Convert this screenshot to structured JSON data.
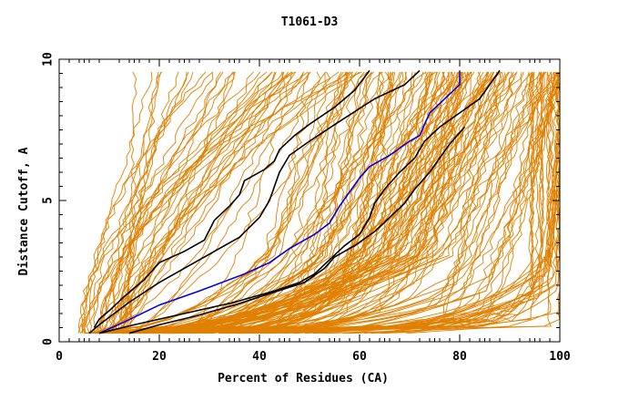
{
  "chart_data": {
    "type": "line",
    "title": "T1061-D3",
    "xlabel": "Percent of Residues (CA)",
    "ylabel": "Distance Cutoff, A",
    "xlim": [
      0,
      100
    ],
    "ylim": [
      0,
      10
    ],
    "x_ticks": [
      0,
      20,
      40,
      60,
      80,
      100
    ],
    "y_ticks": [
      0,
      5,
      10
    ],
    "x_tick_labels": [
      "0",
      "20",
      "40",
      "60",
      "80",
      "100"
    ],
    "y_tick_labels": [
      "0",
      "5",
      "10"
    ],
    "grid": false,
    "legend": "none",
    "colors": {
      "background_series": "#e08000",
      "highlight_black": "#000000",
      "highlight_blue": "#0000e0"
    },
    "highlighted_series": [
      {
        "color": "#000000",
        "points": [
          [
            7,
            0.5
          ],
          [
            8,
            0.8
          ],
          [
            10,
            1.1
          ],
          [
            13,
            1.6
          ],
          [
            17,
            2.2
          ],
          [
            20,
            2.8
          ],
          [
            25,
            3.2
          ],
          [
            29,
            3.6
          ],
          [
            31,
            4.3
          ],
          [
            34,
            4.8
          ],
          [
            36,
            5.2
          ],
          [
            37,
            5.7
          ],
          [
            41,
            6.1
          ],
          [
            43,
            6.4
          ],
          [
            44,
            6.8
          ],
          [
            47,
            7.3
          ],
          [
            50,
            7.7
          ],
          [
            55,
            8.3
          ],
          [
            59,
            8.9
          ],
          [
            62,
            9.6
          ]
        ]
      },
      {
        "color": "#000000",
        "points": [
          [
            6,
            0.3
          ],
          [
            8,
            0.6
          ],
          [
            11,
            1.0
          ],
          [
            14,
            1.4
          ],
          [
            20,
            2.1
          ],
          [
            26,
            2.7
          ],
          [
            31,
            3.2
          ],
          [
            36,
            3.7
          ],
          [
            40,
            4.4
          ],
          [
            42,
            5.0
          ],
          [
            43,
            5.5
          ],
          [
            44,
            6.0
          ],
          [
            46,
            6.6
          ],
          [
            50,
            7.1
          ],
          [
            56,
            7.8
          ],
          [
            63,
            8.6
          ],
          [
            69,
            9.1
          ],
          [
            72,
            9.6
          ]
        ]
      },
      {
        "color": "#0000e0",
        "points": [
          [
            8,
            0.3
          ],
          [
            13,
            0.7
          ],
          [
            20,
            1.3
          ],
          [
            28,
            1.8
          ],
          [
            37,
            2.4
          ],
          [
            42,
            2.8
          ],
          [
            46,
            3.3
          ],
          [
            51,
            3.8
          ],
          [
            54,
            4.2
          ],
          [
            56,
            4.8
          ],
          [
            58,
            5.3
          ],
          [
            60,
            5.8
          ],
          [
            62,
            6.2
          ],
          [
            66,
            6.6
          ],
          [
            70,
            7.1
          ],
          [
            72,
            7.3
          ],
          [
            74,
            8.1
          ],
          [
            77,
            8.6
          ],
          [
            80,
            9.1
          ],
          [
            80,
            9.6
          ]
        ]
      },
      {
        "color": "#000000",
        "points": [
          [
            8,
            0.3
          ],
          [
            15,
            0.6
          ],
          [
            25,
            1.0
          ],
          [
            35,
            1.4
          ],
          [
            43,
            1.8
          ],
          [
            48,
            2.1
          ],
          [
            51,
            2.4
          ],
          [
            54,
            2.9
          ],
          [
            57,
            3.4
          ],
          [
            60,
            3.8
          ],
          [
            62,
            4.4
          ],
          [
            63,
            4.9
          ],
          [
            65,
            5.4
          ],
          [
            68,
            6.0
          ],
          [
            71,
            6.5
          ],
          [
            73,
            7.1
          ],
          [
            76,
            7.6
          ],
          [
            80,
            8.1
          ],
          [
            84,
            8.6
          ],
          [
            86,
            9.1
          ],
          [
            88,
            9.6
          ]
        ]
      },
      {
        "color": "#000000",
        "points": [
          [
            14,
            0.3
          ],
          [
            20,
            0.6
          ],
          [
            27,
            0.9
          ],
          [
            35,
            1.3
          ],
          [
            42,
            1.7
          ],
          [
            49,
            2.1
          ],
          [
            53,
            2.6
          ],
          [
            55,
            3.0
          ],
          [
            59,
            3.4
          ],
          [
            63,
            3.9
          ],
          [
            66,
            4.4
          ],
          [
            69,
            4.9
          ],
          [
            71,
            5.4
          ],
          [
            74,
            6.0
          ],
          [
            76,
            6.5
          ],
          [
            78,
            7.0
          ],
          [
            81,
            7.6
          ]
        ]
      }
    ]
  }
}
